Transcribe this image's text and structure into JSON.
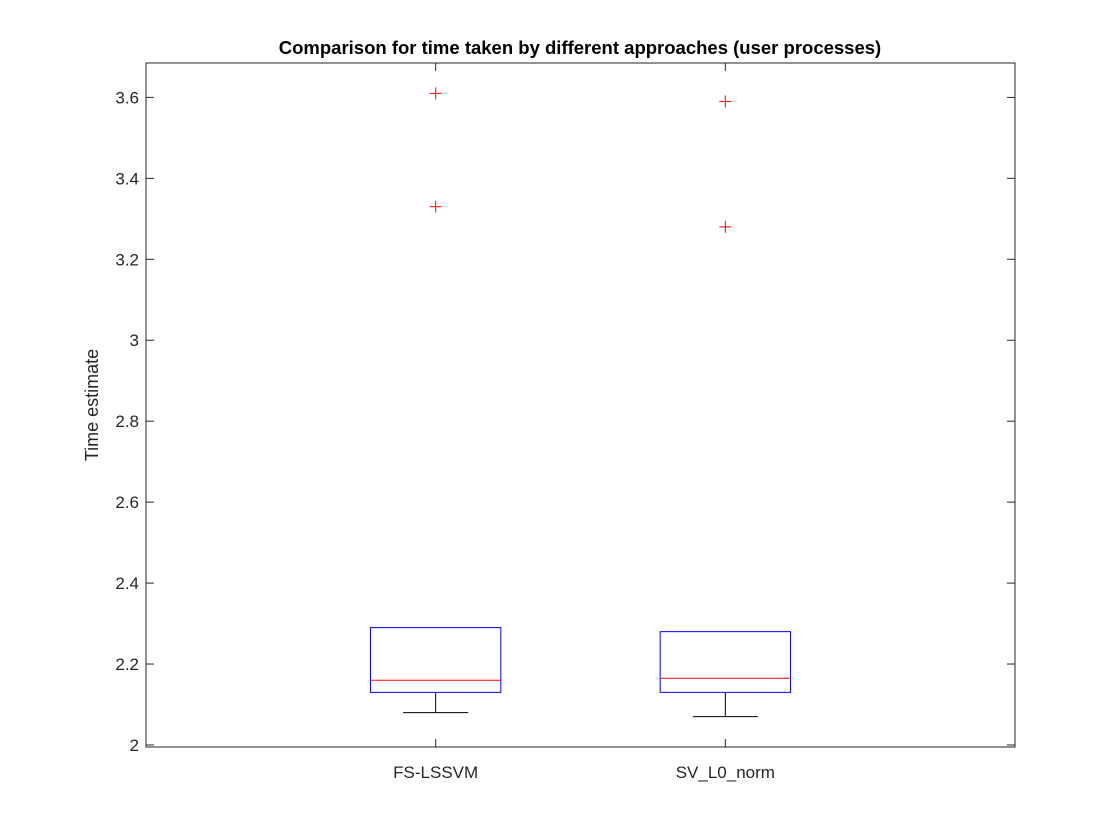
{
  "chart_data": {
    "type": "box",
    "title": "Comparison for time taken by different approaches (user processes)",
    "xlabel": "",
    "ylabel": "Time estimate",
    "ylim": [
      1.995,
      3.685
    ],
    "yticks": [
      2,
      2.2,
      2.4,
      2.6,
      2.8,
      3,
      3.2,
      3.4,
      3.6
    ],
    "ytick_labels": [
      "2",
      "2.2",
      "2.4",
      "2.6",
      "2.8",
      "3",
      "3.2",
      "3.4",
      "3.6"
    ],
    "categories": [
      "FS-LSSVM",
      "SV_L0_norm"
    ],
    "boxes": [
      {
        "category": "FS-LSSVM",
        "whisker_low": 2.08,
        "q1": 2.13,
        "median": 2.16,
        "q3": 2.29,
        "whisker_high": 2.29,
        "outliers": [
          3.33,
          3.61
        ]
      },
      {
        "category": "SV_L0_norm",
        "whisker_low": 2.07,
        "q1": 2.13,
        "median": 2.165,
        "q3": 2.28,
        "whisker_high": 2.28,
        "outliers": [
          3.28,
          3.59
        ]
      }
    ],
    "grid": false,
    "legend": "none",
    "colors": {
      "box": "#0000ff",
      "median": "#ff0000",
      "whisker": "#000000",
      "outlier": "#ff0000",
      "axis": "#262626"
    }
  }
}
